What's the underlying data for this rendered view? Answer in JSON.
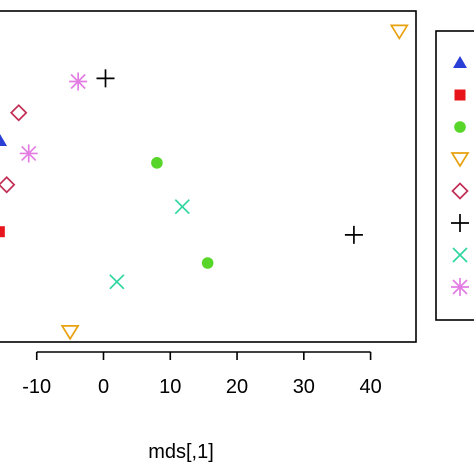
{
  "chart_data": {
    "type": "scatter",
    "xlabel": "mds[,1]",
    "ylabel": "",
    "title": "",
    "xlim": [
      -15.5,
      46.5
    ],
    "x_ticks": [
      -10,
      0,
      10,
      20,
      30,
      40
    ],
    "x_tick_labels": [
      "-10",
      "0",
      "10",
      "20",
      "30",
      "40"
    ],
    "ylim": [
      0,
      100
    ],
    "grid": false,
    "legend": "right",
    "series": [
      {
        "marker": "triangle",
        "color": "#2a3fd6",
        "points": [
          {
            "x": -15.5,
            "y": 62
          }
        ]
      },
      {
        "marker": "square",
        "color": "#e8141b",
        "points": [
          {
            "x": -15.6,
            "y": 33
          }
        ]
      },
      {
        "marker": "circle",
        "color": "#57d629",
        "points": [
          {
            "x": 8,
            "y": 55
          },
          {
            "x": 15.6,
            "y": 23
          }
        ]
      },
      {
        "marker": "triangle-down",
        "color": "#e8a10e",
        "points": [
          {
            "x": 44.3,
            "y": 97
          },
          {
            "x": -5,
            "y": 1
          }
        ]
      },
      {
        "marker": "diamond",
        "color": "#c22f55",
        "points": [
          {
            "x": -12.7,
            "y": 71
          },
          {
            "x": -14.5,
            "y": 48
          }
        ]
      },
      {
        "marker": "plus",
        "color": "#000000",
        "points": [
          {
            "x": 0.3,
            "y": 82
          },
          {
            "x": 37.5,
            "y": 32
          }
        ]
      },
      {
        "marker": "cross",
        "color": "#2ed69f",
        "points": [
          {
            "x": 11.8,
            "y": 41
          },
          {
            "x": 2,
            "y": 17
          }
        ]
      },
      {
        "marker": "asterisk",
        "color": "#e27ce2",
        "points": [
          {
            "x": -3.8,
            "y": 81
          },
          {
            "x": -11.2,
            "y": 58
          }
        ]
      }
    ]
  }
}
